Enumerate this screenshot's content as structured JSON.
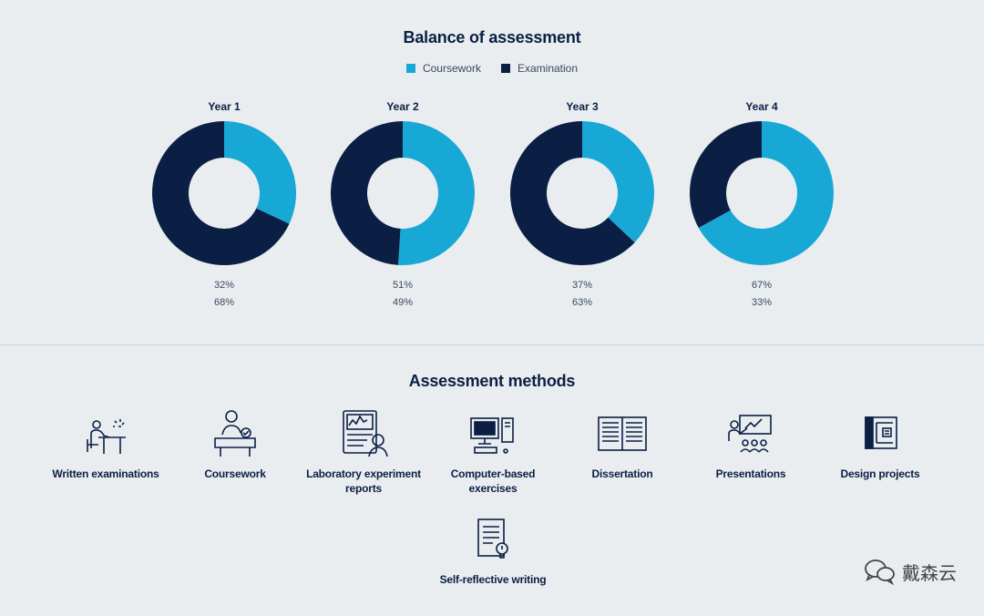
{
  "chart_data": {
    "type": "pie",
    "title": "Balance of assessment",
    "legend": [
      {
        "name": "Coursework",
        "color": "#17a8d6"
      },
      {
        "name": "Examination",
        "color": "#0b1f45"
      }
    ],
    "legend_position": "top-center",
    "charts": [
      {
        "label": "Year 1",
        "coursework": 32,
        "examination": 68,
        "coursework_text": "32%",
        "examination_text": "68%"
      },
      {
        "label": "Year 2",
        "coursework": 51,
        "examination": 49,
        "coursework_text": "51%",
        "examination_text": "49%"
      },
      {
        "label": "Year 3",
        "coursework": 37,
        "examination": 63,
        "coursework_text": "37%",
        "examination_text": "63%"
      },
      {
        "label": "Year 4",
        "coursework": 67,
        "examination": 33,
        "coursework_text": "67%",
        "examination_text": "33%"
      }
    ]
  },
  "methods": {
    "title": "Assessment methods",
    "items": [
      {
        "label1": "Written examinations",
        "label2": "",
        "icon": "exam-desk-icon"
      },
      {
        "label1": "Coursework",
        "label2": "",
        "icon": "coursework-icon"
      },
      {
        "label1": "Laboratory experiment",
        "label2": "reports",
        "icon": "lab-report-icon"
      },
      {
        "label1": "Computer-based",
        "label2": "exercises",
        "icon": "computer-icon"
      },
      {
        "label1": "Dissertation",
        "label2": "",
        "icon": "book-icon"
      },
      {
        "label1": "Presentations",
        "label2": "",
        "icon": "presentation-icon"
      },
      {
        "label1": "Design projects",
        "label2": "",
        "icon": "blueprint-icon"
      },
      {
        "label1": "Self-reflective writing",
        "label2": "",
        "icon": "document-idea-icon"
      }
    ]
  },
  "watermark": {
    "text": "戴森云",
    "icon": "wechat-icon"
  }
}
